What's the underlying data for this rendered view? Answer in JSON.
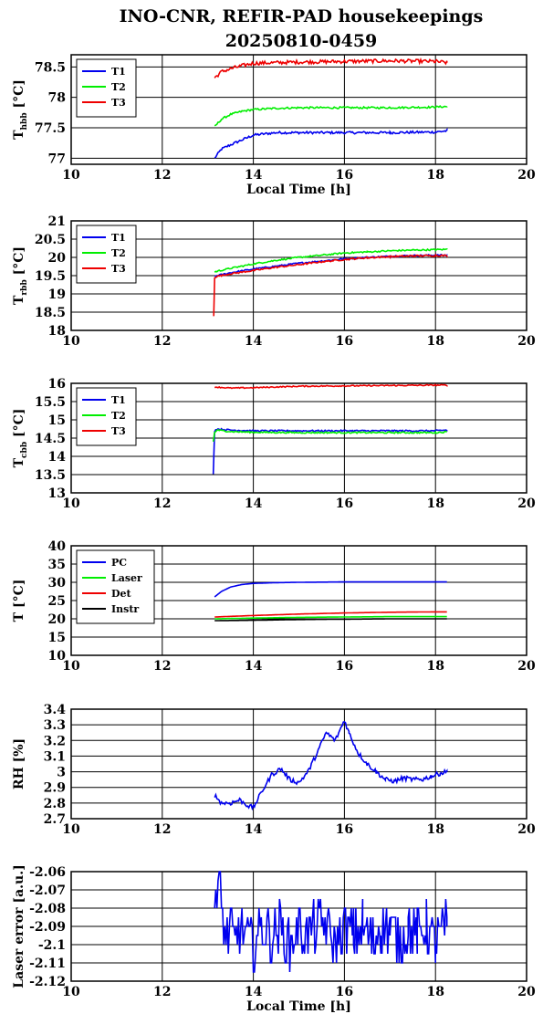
{
  "title_line1": "INO-CNR, REFIR-PAD housekeepings",
  "title_line2": "20250810-0459",
  "colors": {
    "blue": "#0000ee",
    "green": "#00ee00",
    "red": "#ee0000",
    "black": "#000000"
  },
  "chart_data": [
    {
      "type": "line",
      "ylabel_main": "T",
      "ylabel_sub": "hbb",
      "ylabel_unit": "[°C]",
      "xlabel": "Local Time [h]",
      "xlim": [
        10,
        20
      ],
      "ylim": [
        76.9,
        78.7
      ],
      "x_ticks": [
        "10",
        "12",
        "14",
        "16",
        "18",
        "20"
      ],
      "y_ticks": [
        "77",
        "77.5",
        "78",
        "78.5"
      ],
      "grid": true,
      "legend": "top-left",
      "series": [
        {
          "name": "T1",
          "color": "blue",
          "x": [
            13.15,
            13.3,
            13.5,
            13.75,
            14.0,
            14.5,
            15.0,
            16.0,
            17.0,
            18.0,
            18.25
          ],
          "y": [
            77.0,
            77.15,
            77.22,
            77.3,
            77.38,
            77.42,
            77.42,
            77.42,
            77.42,
            77.43,
            77.45
          ],
          "noise": 0.02
        },
        {
          "name": "T2",
          "color": "green",
          "x": [
            13.15,
            13.3,
            13.5,
            13.75,
            14.0,
            14.5,
            15.0,
            16.0,
            17.0,
            18.0,
            18.25
          ],
          "y": [
            77.52,
            77.64,
            77.72,
            77.77,
            77.8,
            77.82,
            77.83,
            77.83,
            77.83,
            77.84,
            77.85
          ],
          "noise": 0.015
        },
        {
          "name": "T3",
          "color": "red",
          "x": [
            13.15,
            13.3,
            13.5,
            13.75,
            14.0,
            14.5,
            15.0,
            16.0,
            17.0,
            18.0,
            18.25
          ],
          "y": [
            78.32,
            78.42,
            78.47,
            78.52,
            78.56,
            78.57,
            78.58,
            78.59,
            78.6,
            78.59,
            78.57
          ],
          "noise": 0.03
        }
      ]
    },
    {
      "type": "line",
      "ylabel_main": "T",
      "ylabel_sub": "rbb",
      "ylabel_unit": "[°C]",
      "xlabel": "",
      "xlim": [
        10,
        20
      ],
      "ylim": [
        18,
        21
      ],
      "x_ticks": [
        "10",
        "12",
        "14",
        "16",
        "18",
        "20"
      ],
      "y_ticks": [
        "18",
        "18.5",
        "19",
        "19.5",
        "20",
        "20.5",
        "21"
      ],
      "grid": true,
      "legend": "top-left",
      "series": [
        {
          "name": "T1",
          "color": "blue",
          "x": [
            13.15,
            13.2,
            13.5,
            14.0,
            14.5,
            15.0,
            15.5,
            16.0,
            16.5,
            17.0,
            17.5,
            18.0,
            18.25
          ],
          "y": [
            19.48,
            19.5,
            19.58,
            19.68,
            19.76,
            19.84,
            19.9,
            19.96,
            20.0,
            20.03,
            20.05,
            20.06,
            20.06
          ],
          "noise": 0.02
        },
        {
          "name": "T2",
          "color": "green",
          "x": [
            13.15,
            13.2,
            13.5,
            14.0,
            14.5,
            15.0,
            15.5,
            16.0,
            16.5,
            17.0,
            17.5,
            18.0,
            18.25
          ],
          "y": [
            19.6,
            19.62,
            19.7,
            19.82,
            19.92,
            20.0,
            20.06,
            20.12,
            20.15,
            20.18,
            20.2,
            20.21,
            20.22
          ],
          "noise": 0.02
        },
        {
          "name": "T3",
          "color": "red",
          "x": [
            13.13,
            13.15,
            13.2,
            13.5,
            14.0,
            14.5,
            15.0,
            15.5,
            16.0,
            16.5,
            17.0,
            17.5,
            18.0,
            18.25
          ],
          "y": [
            18.4,
            19.45,
            19.48,
            19.55,
            19.64,
            19.73,
            19.8,
            19.88,
            19.94,
            19.99,
            20.02,
            20.04,
            20.05,
            20.05
          ],
          "noise": 0.02
        }
      ]
    },
    {
      "type": "line",
      "ylabel_main": "T",
      "ylabel_sub": "cbb",
      "ylabel_unit": "[°C]",
      "xlabel": "",
      "xlim": [
        10,
        20
      ],
      "ylim": [
        13,
        16
      ],
      "x_ticks": [
        "10",
        "12",
        "14",
        "16",
        "18",
        "20"
      ],
      "y_ticks": [
        "13",
        "13.5",
        "14",
        "14.5",
        "15",
        "15.5",
        "16"
      ],
      "grid": true,
      "legend": "top-left",
      "series": [
        {
          "name": "T1",
          "color": "blue",
          "x": [
            13.12,
            13.15,
            13.2,
            13.5,
            14.0,
            15.0,
            16.0,
            17.0,
            18.0,
            18.25
          ],
          "y": [
            13.5,
            14.7,
            14.75,
            14.72,
            14.7,
            14.7,
            14.7,
            14.7,
            14.7,
            14.72
          ],
          "noise": 0.02
        },
        {
          "name": "T2",
          "color": "green",
          "x": [
            13.12,
            13.15,
            13.2,
            13.5,
            14.0,
            15.0,
            16.0,
            17.0,
            18.0,
            18.25
          ],
          "y": [
            14.4,
            14.65,
            14.72,
            14.68,
            14.66,
            14.65,
            14.65,
            14.65,
            14.65,
            14.67
          ],
          "noise": 0.02
        },
        {
          "name": "T3",
          "color": "red",
          "x": [
            13.15,
            13.5,
            14.0,
            15.0,
            16.0,
            17.0,
            18.0,
            18.25
          ],
          "y": [
            15.9,
            15.87,
            15.88,
            15.92,
            15.93,
            15.94,
            15.95,
            15.95
          ],
          "noise": 0.015
        }
      ]
    },
    {
      "type": "line",
      "ylabel_main": "T",
      "ylabel_sub": "",
      "ylabel_unit": "[°C]",
      "xlabel": "",
      "xlim": [
        10,
        20
      ],
      "ylim": [
        10,
        40
      ],
      "x_ticks": [
        "10",
        "12",
        "14",
        "16",
        "18",
        "20"
      ],
      "y_ticks": [
        "10",
        "15",
        "20",
        "25",
        "30",
        "35",
        "40"
      ],
      "grid": true,
      "legend": "top-left",
      "series": [
        {
          "name": "PC",
          "color": "blue",
          "x": [
            13.15,
            13.3,
            13.5,
            13.75,
            14.0,
            14.5,
            15.0,
            16.0,
            17.0,
            18.0,
            18.25
          ],
          "y": [
            26.0,
            27.5,
            28.7,
            29.4,
            29.7,
            29.9,
            30.0,
            30.1,
            30.1,
            30.1,
            30.1
          ],
          "noise": 0.0
        },
        {
          "name": "Laser",
          "color": "green",
          "x": [
            13.15,
            14.0,
            15.0,
            16.0,
            17.0,
            18.0,
            18.25
          ],
          "y": [
            20.0,
            20.2,
            20.4,
            20.5,
            20.6,
            20.6,
            20.6
          ],
          "noise": 0.0
        },
        {
          "name": "Det",
          "color": "red",
          "x": [
            13.15,
            14.0,
            15.0,
            16.0,
            17.0,
            18.0,
            18.25
          ],
          "y": [
            20.5,
            20.9,
            21.3,
            21.6,
            21.8,
            21.9,
            21.9
          ],
          "noise": 0.0
        },
        {
          "name": "Instr",
          "color": "black",
          "x": [
            13.15,
            14.0,
            15.0,
            16.0,
            17.0,
            18.0,
            18.25
          ],
          "y": [
            19.5,
            19.6,
            19.8,
            19.9,
            20.0,
            20.0,
            20.0
          ],
          "noise": 0.0
        }
      ]
    },
    {
      "type": "line",
      "ylabel_main": "RH [%]",
      "ylabel_sub": "",
      "ylabel_unit": "",
      "xlabel": "",
      "xlim": [
        10,
        20
      ],
      "ylim": [
        2.7,
        3.4
      ],
      "x_ticks": [
        "10",
        "12",
        "14",
        "16",
        "18",
        "20"
      ],
      "y_ticks": [
        "2.7",
        "2.8",
        "2.9",
        "3",
        "3.1",
        "3.2",
        "3.3",
        "3.4"
      ],
      "grid": true,
      "legend": "none",
      "series": [
        {
          "name": "",
          "color": "blue",
          "x": [
            13.15,
            13.3,
            13.5,
            13.7,
            13.9,
            14.0,
            14.2,
            14.4,
            14.6,
            14.8,
            15.0,
            15.2,
            15.4,
            15.6,
            15.8,
            16.0,
            16.1,
            16.3,
            16.5,
            16.7,
            16.9,
            17.1,
            17.3,
            17.5,
            17.7,
            17.9,
            18.1,
            18.25
          ],
          "y": [
            2.85,
            2.8,
            2.8,
            2.82,
            2.78,
            2.77,
            2.88,
            2.98,
            3.02,
            2.95,
            2.93,
            3.0,
            3.12,
            3.25,
            3.2,
            3.33,
            3.25,
            3.12,
            3.05,
            3.0,
            2.95,
            2.94,
            2.96,
            2.95,
            2.95,
            2.97,
            2.99,
            3.0
          ],
          "noise": 0.015
        }
      ]
    },
    {
      "type": "line",
      "ylabel_main": "Laser error [a.u.]",
      "ylabel_sub": "",
      "ylabel_unit": "",
      "xlabel": "Local Time [h]",
      "xlim": [
        10,
        20
      ],
      "ylim": [
        -2.12,
        -2.06
      ],
      "x_ticks": [
        "10",
        "12",
        "14",
        "16",
        "18",
        "20"
      ],
      "y_ticks": [
        "-2.12",
        "-2.11",
        "-2.1",
        "-2.09",
        "-2.08",
        "-2.07",
        "-2.06"
      ],
      "grid": true,
      "legend": "none",
      "series": [
        {
          "name": "",
          "color": "blue",
          "x": [
            13.15,
            13.2,
            13.25,
            13.3,
            13.35,
            13.4,
            13.5,
            13.6,
            13.7,
            13.8,
            14.0,
            14.2,
            14.4,
            14.6,
            14.8,
            15.0,
            15.2,
            15.4,
            15.6,
            15.8,
            16.0,
            16.2,
            16.4,
            16.6,
            16.8,
            17.0,
            17.2,
            17.4,
            17.6,
            17.8,
            18.0,
            18.25
          ],
          "y": [
            -2.065,
            -2.075,
            -2.065,
            -2.08,
            -2.09,
            -2.095,
            -2.09,
            -2.1,
            -2.09,
            -2.095,
            -2.1,
            -2.09,
            -2.095,
            -2.09,
            -2.1,
            -2.09,
            -2.095,
            -2.09,
            -2.09,
            -2.1,
            -2.09,
            -2.095,
            -2.09,
            -2.1,
            -2.09,
            -2.09,
            -2.1,
            -2.09,
            -2.095,
            -2.09,
            -2.1,
            -2.09
          ],
          "noise": 0.0,
          "quantized": 0.005
        }
      ]
    }
  ]
}
